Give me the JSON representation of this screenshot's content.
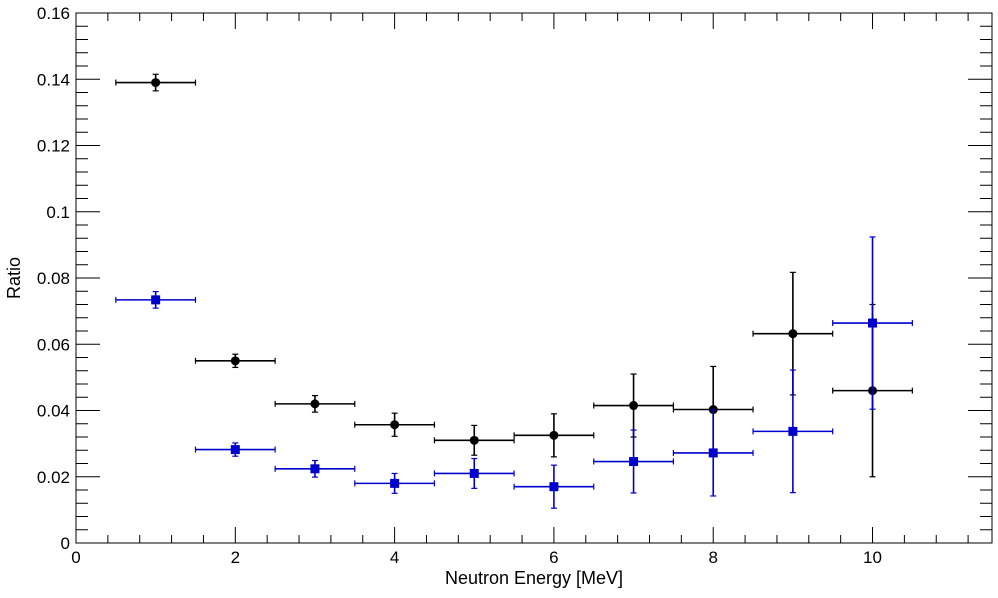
{
  "chart_data": {
    "type": "scatter",
    "xlabel": "Neutron Energy [MeV]",
    "ylabel": "Ratio",
    "xlim": [
      0,
      11.5
    ],
    "ylim": [
      0,
      0.16
    ],
    "x_ticks": [
      "0",
      "2",
      "4",
      "6",
      "8",
      "10"
    ],
    "x_tick_values": [
      0,
      2,
      4,
      6,
      8,
      10
    ],
    "y_ticks": [
      "0",
      "0.02",
      "0.04",
      "0.06",
      "0.08",
      "0.1",
      "0.12",
      "0.14",
      "0.16"
    ],
    "y_tick_values": [
      0,
      0.02,
      0.04,
      0.06,
      0.08,
      0.1,
      0.12,
      0.14,
      0.16
    ],
    "grid": false,
    "series": [
      {
        "marker": "circle",
        "color": "#000000",
        "x_halfwidth": 0.5,
        "x": [
          1,
          2,
          3,
          4,
          5,
          6,
          7,
          8,
          9,
          10
        ],
        "y": [
          0.139,
          0.055,
          0.042,
          0.0357,
          0.031,
          0.0325,
          0.0415,
          0.0403,
          0.0632,
          0.046
        ],
        "yerr": [
          0.0025,
          0.002,
          0.0025,
          0.0035,
          0.0045,
          0.0065,
          0.0095,
          0.013,
          0.0185,
          0.026
        ]
      },
      {
        "marker": "square",
        "color": "#0000cc",
        "x_halfwidth": 0.5,
        "x": [
          1,
          2,
          3,
          4,
          5,
          6,
          7,
          8,
          9,
          10
        ],
        "y": [
          0.0734,
          0.0282,
          0.0224,
          0.018,
          0.021,
          0.017,
          0.0246,
          0.0272,
          0.0337,
          0.0664
        ],
        "yerr": [
          0.0025,
          0.002,
          0.0025,
          0.003,
          0.0045,
          0.0065,
          0.0095,
          0.013,
          0.0185,
          0.026
        ]
      }
    ]
  }
}
